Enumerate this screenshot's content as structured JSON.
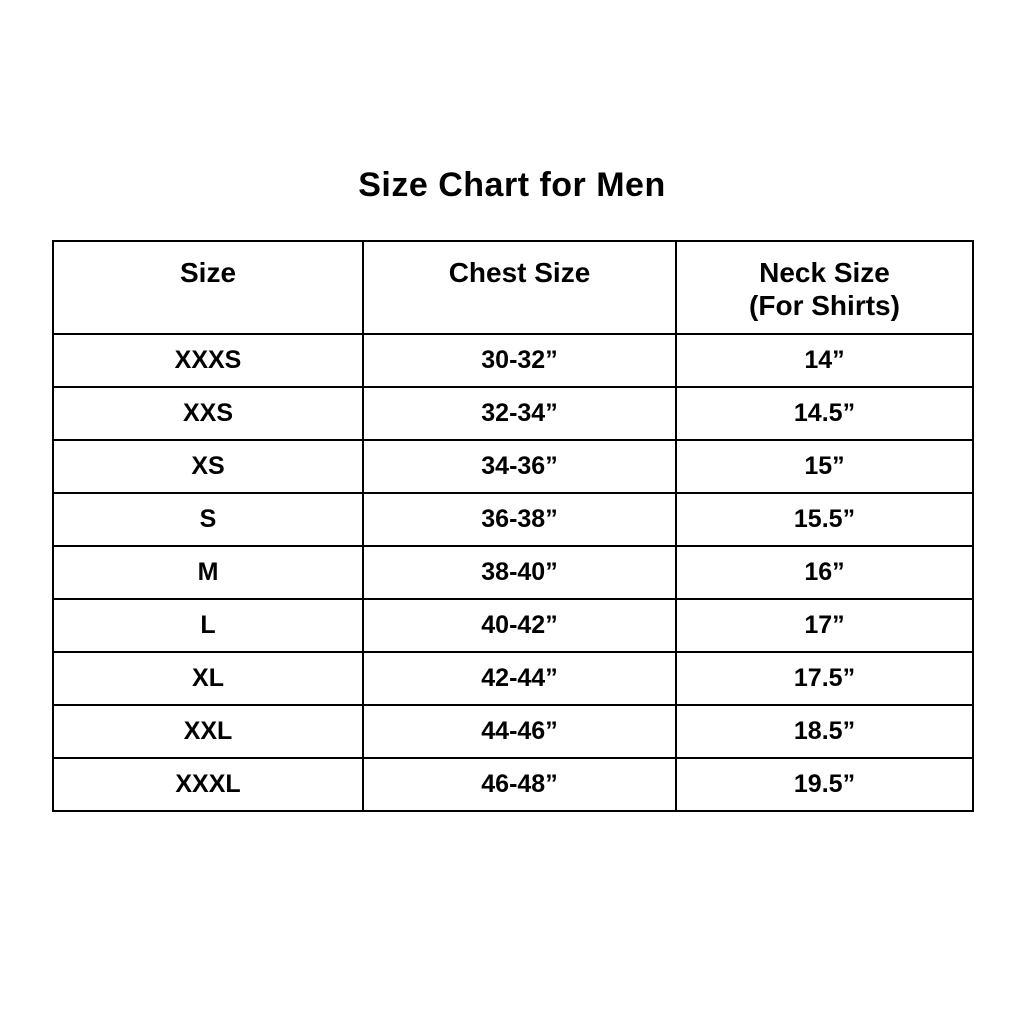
{
  "page": {
    "title": "Size Chart for Men"
  },
  "colors": {
    "background": "#ffffff",
    "text": "#000000",
    "border": "#000000"
  },
  "chart_data": {
    "type": "table",
    "title": "Size Chart for Men",
    "columns": [
      {
        "label": "Size",
        "sublabel": ""
      },
      {
        "label": "Chest Size",
        "sublabel": ""
      },
      {
        "label": "Neck Size",
        "sublabel": "(For Shirts)"
      }
    ],
    "rows": [
      {
        "size": "XXXS",
        "chest": "30-32”",
        "neck": "14”"
      },
      {
        "size": "XXS",
        "chest": "32-34”",
        "neck": "14.5”"
      },
      {
        "size": "XS",
        "chest": "34-36”",
        "neck": "15”"
      },
      {
        "size": "S",
        "chest": "36-38”",
        "neck": "15.5”"
      },
      {
        "size": "M",
        "chest": "38-40”",
        "neck": "16”"
      },
      {
        "size": "L",
        "chest": "40-42”",
        "neck": "17”"
      },
      {
        "size": "XL",
        "chest": "42-44”",
        "neck": "17.5”"
      },
      {
        "size": "XXL",
        "chest": "44-46”",
        "neck": "18.5”"
      },
      {
        "size": "XXXL",
        "chest": "46-48”",
        "neck": "19.5”"
      }
    ]
  }
}
